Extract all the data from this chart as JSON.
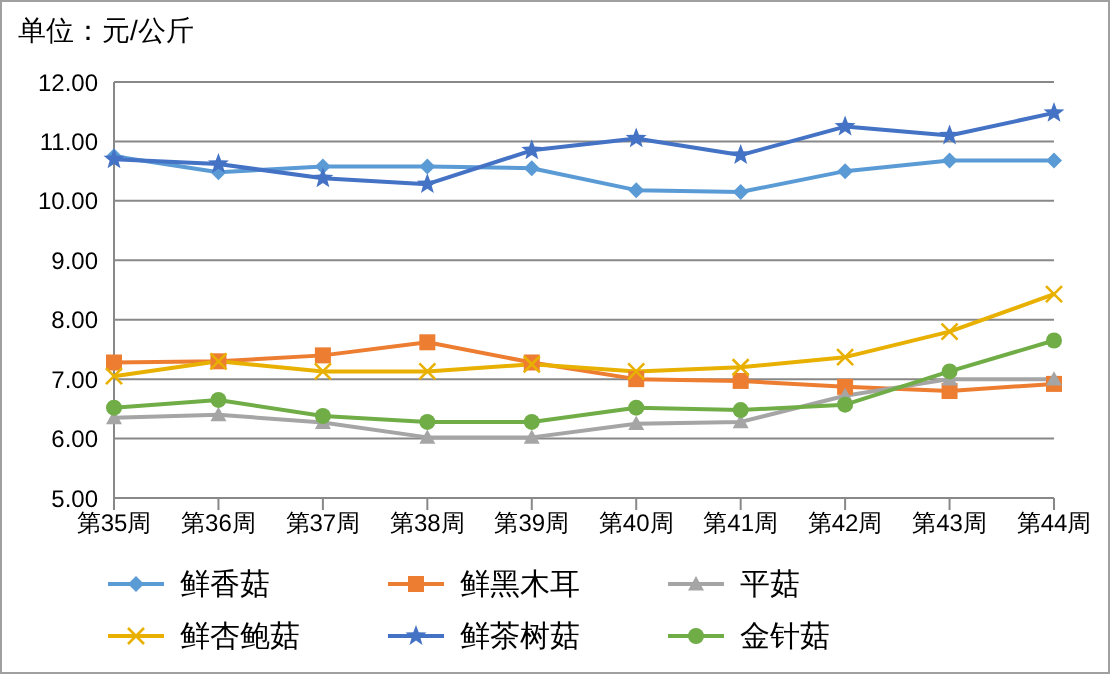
{
  "chart_data": {
    "type": "line",
    "title": "单位：元/公斤",
    "categories": [
      "第35周",
      "第36周",
      "第37周",
      "第38周",
      "第39周",
      "第40周",
      "第41周",
      "第42周",
      "第43周",
      "第44周"
    ],
    "series": [
      {
        "name": "鲜香菇",
        "color": "#5b9bd5",
        "marker": "diamond",
        "values": [
          10.75,
          10.48,
          10.58,
          10.58,
          10.55,
          10.18,
          10.15,
          10.5,
          10.68,
          10.68
        ]
      },
      {
        "name": "鲜黑木耳",
        "color": "#ed7d31",
        "marker": "square",
        "values": [
          7.28,
          7.3,
          7.4,
          7.62,
          7.28,
          7.0,
          6.97,
          6.87,
          6.8,
          6.92
        ]
      },
      {
        "name": "平菇",
        "color": "#a5a5a5",
        "marker": "triangle",
        "values": [
          6.35,
          6.4,
          6.27,
          6.02,
          6.02,
          6.25,
          6.28,
          6.72,
          7.0,
          7.0
        ]
      },
      {
        "name": "鲜杏鲍菇",
        "color": "#e8b000",
        "marker": "cross",
        "values": [
          7.05,
          7.3,
          7.13,
          7.13,
          7.25,
          7.13,
          7.2,
          7.37,
          7.8,
          8.43
        ]
      },
      {
        "name": "鲜茶树菇",
        "color": "#4472c4",
        "marker": "star",
        "values": [
          10.7,
          10.62,
          10.38,
          10.28,
          10.85,
          11.05,
          10.77,
          11.25,
          11.1,
          11.48
        ]
      },
      {
        "name": "金针菇",
        "color": "#70ad47",
        "marker": "circle",
        "values": [
          6.52,
          6.65,
          6.38,
          6.28,
          6.28,
          6.52,
          6.48,
          6.57,
          7.13,
          7.65
        ]
      }
    ],
    "ylim": [
      5,
      12
    ],
    "yticks": [
      {
        "value": 5,
        "label": "5.00"
      },
      {
        "value": 6,
        "label": "6.00"
      },
      {
        "value": 7,
        "label": "7.00"
      },
      {
        "value": 8,
        "label": "8.00"
      },
      {
        "value": 9,
        "label": "9.00"
      },
      {
        "value": 10,
        "label": "10.00"
      },
      {
        "value": 11,
        "label": "11.00"
      },
      {
        "value": 12,
        "label": "12.00"
      }
    ],
    "grid": "y",
    "legend": "bottom"
  }
}
